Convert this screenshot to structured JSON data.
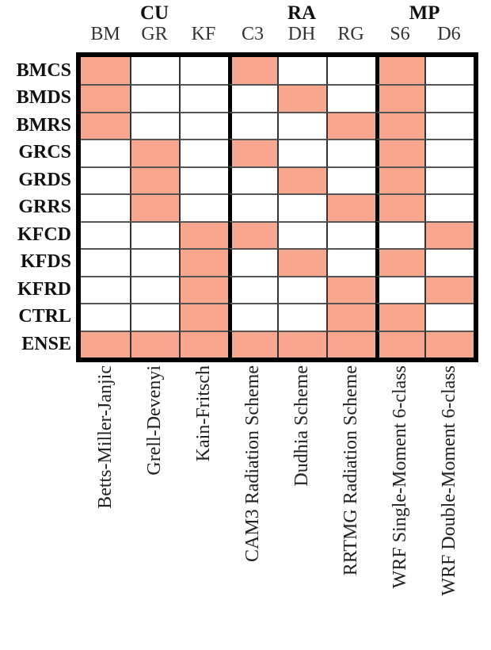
{
  "chart_data": {
    "type": "heatmap",
    "description": "Binary matrix of WRF physics ensemble members vs. physics scheme options; salmon cell = scheme used by that member",
    "column_groups": [
      {
        "label": "CU",
        "span": 3
      },
      {
        "label": "RA",
        "span": 3
      },
      {
        "label": "MP",
        "span": 2
      }
    ],
    "columns": [
      "BM",
      "GR",
      "KF",
      "C3",
      "DH",
      "RG",
      "S6",
      "D6"
    ],
    "column_full_names": [
      "Betts-Miller-Janjic",
      "Grell-Devenyi",
      "Kain-Fritsch",
      "CAM3 Radiation Scheme",
      "Dudhia Scheme",
      "RRTMG Radiation Scheme",
      "WRF Single-Moment 6-class",
      "WRF Double-Moment 6-class"
    ],
    "rows": [
      "BMCS",
      "BMDS",
      "BMRS",
      "GRCS",
      "GRDS",
      "GRRS",
      "KFCD",
      "KFDS",
      "KFRD",
      "CTRL",
      "ENSE"
    ],
    "matrix": [
      [
        1,
        0,
        0,
        1,
        0,
        0,
        1,
        0
      ],
      [
        1,
        0,
        0,
        0,
        1,
        0,
        1,
        0
      ],
      [
        1,
        0,
        0,
        0,
        0,
        1,
        1,
        0
      ],
      [
        0,
        1,
        0,
        1,
        0,
        0,
        1,
        0
      ],
      [
        0,
        1,
        0,
        0,
        1,
        0,
        1,
        0
      ],
      [
        0,
        1,
        0,
        0,
        0,
        1,
        1,
        0
      ],
      [
        0,
        0,
        1,
        1,
        0,
        0,
        0,
        1
      ],
      [
        0,
        0,
        1,
        0,
        1,
        0,
        1,
        0
      ],
      [
        0,
        0,
        1,
        0,
        0,
        1,
        0,
        1
      ],
      [
        0,
        0,
        1,
        0,
        0,
        1,
        1,
        0
      ],
      [
        1,
        1,
        1,
        1,
        1,
        1,
        1,
        1
      ]
    ],
    "colors": {
      "filled": "#F9A68F",
      "empty": "#FFFFFF",
      "outer_border": "#000000",
      "group_separator": "#000000",
      "grid_vertical": "#333333",
      "grid_horizontal": "#555555"
    },
    "legend_position": "none",
    "grid": true
  }
}
